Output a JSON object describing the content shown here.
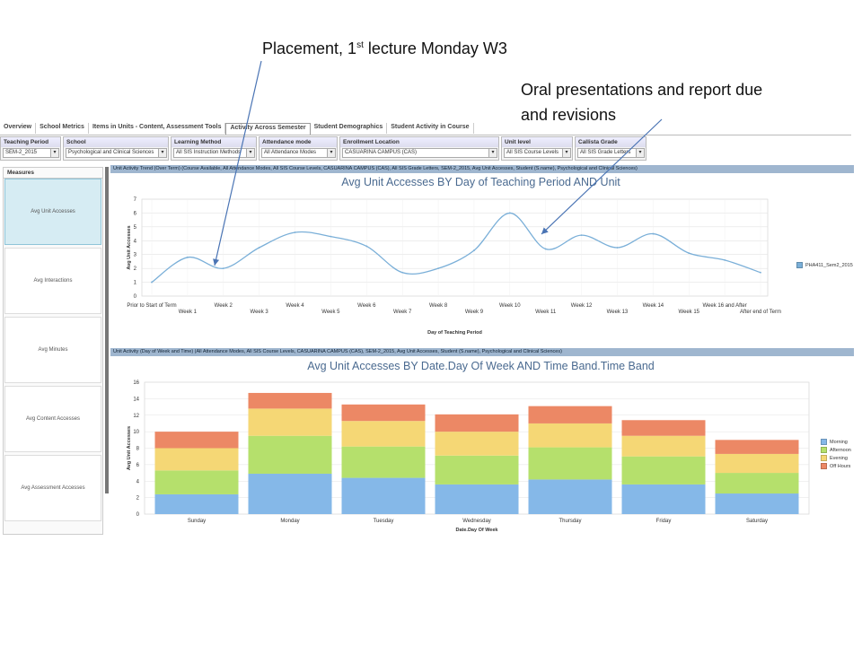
{
  "annotations": {
    "a1_pre": "Placement, 1",
    "a1_sup": "st",
    "a1_post": " lecture Monday W3",
    "a2_line1": "Oral presentations  and report due",
    "a2_line2": "and revisions"
  },
  "tabs": [
    "Overview",
    "School Metrics",
    "Items in Units - Content, Assessment Tools",
    "Activity Across Semester",
    "Student Demographics",
    "Student Activity in Course"
  ],
  "active_tab": "Activity Across Semester",
  "filters": [
    {
      "title": "Teaching Period",
      "value": "SEM-2_2015"
    },
    {
      "title": "School",
      "value": "Psychological and Clinical Sciences"
    },
    {
      "title": "Learning Method",
      "value": "All SIS Instruction Methods"
    },
    {
      "title": "Attendance mode",
      "value": "All Attendance Modes"
    },
    {
      "title": "Enrollment Location",
      "value": "CASUARINA CAMPUS (CAS)"
    },
    {
      "title": "Unit level",
      "value": "All SIS Course Levels"
    },
    {
      "title": "Callista Grade",
      "value": "All SIS Grade Letters"
    }
  ],
  "measures": {
    "title": "Measures",
    "items": [
      "Avg Unit Accesses",
      "Avg Interactions",
      "Avg Minutes",
      "Avg Content Accesses",
      "Avg Assessment Accesses"
    ],
    "selected": "Avg Unit Accesses"
  },
  "panel1_bar": "Unit Activity Trend (Over Term) (Course Available, All Attendance Modes, All SIS Course Levels, CASUARINA CAMPUS (CAS), All SIS Grade Letters, SEM-2_2015, Avg Unit Accesses, Student (S.name), Psychological and Clinical Sciences)",
  "panel2_bar": "Unit Activity (Day of Week and Time) (All Attendance Modes, All SIS Course Levels, CASUARINA CAMPUS (CAS), SEM-2_2015, Avg Unit Accesses, Student (S.name), Psychological and Clinical Sciences)",
  "chart_data": [
    {
      "type": "line",
      "title": "Avg Unit Accesses BY Day of Teaching Period AND Unit",
      "xlabel": "Day of Teaching Period",
      "ylabel": "Avg Unit Accesses",
      "ylim": [
        0,
        7
      ],
      "yticks": [
        0,
        1,
        2,
        3,
        4,
        5,
        6,
        7
      ],
      "categories": [
        "Prior to Start of Term",
        "Week 1",
        "Week 2",
        "Week 3",
        "Week 4",
        "Week 5",
        "Week 6",
        "Week 7",
        "Week 8",
        "Week 9",
        "Week 10",
        "Week 11",
        "Week 12",
        "Week 13",
        "Week 14",
        "Week 15",
        "Week 16 and After",
        "After end of Term"
      ],
      "series": [
        {
          "name": "PHA411_Sem2_2015",
          "color": "#7aafd8",
          "values": [
            1.0,
            2.8,
            2.0,
            3.5,
            4.6,
            4.3,
            3.6,
            1.7,
            2.0,
            3.3,
            6.0,
            3.4,
            4.4,
            3.5,
            4.5,
            3.1,
            2.6,
            1.7
          ]
        }
      ],
      "legend": "right",
      "grid": true
    },
    {
      "type": "bar",
      "stacked": true,
      "title": "Avg Unit Accesses BY Date.Day Of Week AND Time Band.Time Band",
      "xlabel": "Date.Day Of Week",
      "ylabel": "Avg Unit Accesses",
      "ylim": [
        0,
        16
      ],
      "yticks": [
        0,
        2,
        4,
        6,
        8,
        10,
        12,
        14,
        16
      ],
      "categories": [
        "Sunday",
        "Monday",
        "Tuesday",
        "Wednesday",
        "Thursday",
        "Friday",
        "Saturday"
      ],
      "series": [
        {
          "name": "Morning",
          "color": "#85b8e8",
          "values": [
            2.4,
            4.9,
            4.4,
            3.6,
            4.2,
            3.6,
            2.5
          ]
        },
        {
          "name": "Afternoon",
          "color": "#b5e06c",
          "values": [
            2.9,
            4.6,
            3.8,
            3.5,
            3.9,
            3.4,
            2.5
          ]
        },
        {
          "name": "Evening",
          "color": "#f5d775",
          "values": [
            2.7,
            3.3,
            3.1,
            2.9,
            2.9,
            2.5,
            2.3
          ]
        },
        {
          "name": "Off Hours",
          "color": "#ec8865",
          "values": [
            2.0,
            1.9,
            2.0,
            2.1,
            2.1,
            1.9,
            1.7
          ]
        }
      ],
      "legend": "right",
      "grid": true
    }
  ]
}
